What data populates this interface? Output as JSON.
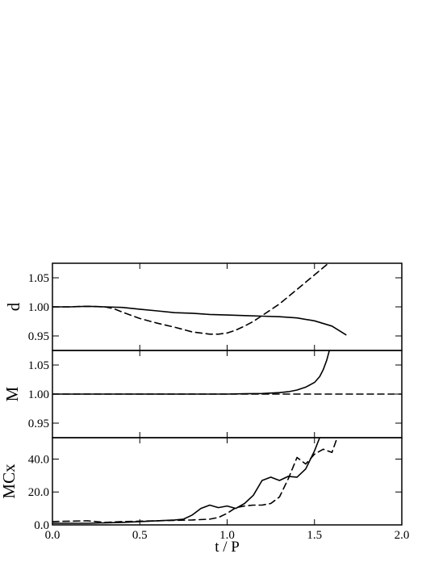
{
  "chart_data": {
    "type": "line",
    "xlabel": "t / P",
    "xlim": [
      0.0,
      2.0
    ],
    "xticks": [
      0.0,
      0.5,
      1.0,
      1.5,
      2.0
    ],
    "xtick_labels": [
      "0.0",
      "0.5",
      "1.0",
      "1.5",
      "2.0"
    ],
    "line_styles": [
      "solid",
      "dashed"
    ],
    "panels": [
      {
        "ylabel": "d",
        "ylim": [
          0.925,
          1.075
        ],
        "yticks": [
          0.95,
          1.0,
          1.05
        ],
        "ytick_labels": [
          "0.95",
          "1.00",
          "1.05"
        ],
        "series": [
          {
            "style": "solid",
            "x": [
              0.0,
              0.1,
              0.2,
              0.3,
              0.4,
              0.5,
              0.6,
              0.7,
              0.8,
              0.9,
              1.0,
              1.1,
              1.2,
              1.3,
              1.4,
              1.5,
              1.6,
              1.68
            ],
            "y": [
              1.0,
              1.0,
              1.001,
              1.0,
              0.999,
              0.996,
              0.993,
              0.99,
              0.989,
              0.987,
              0.986,
              0.985,
              0.984,
              0.983,
              0.981,
              0.976,
              0.967,
              0.952
            ]
          },
          {
            "style": "dashed",
            "x": [
              0.0,
              0.1,
              0.2,
              0.3,
              0.35,
              0.4,
              0.5,
              0.6,
              0.7,
              0.8,
              0.9,
              0.95,
              1.0,
              1.05,
              1.1,
              1.15,
              1.2,
              1.3,
              1.4,
              1.5,
              1.58
            ],
            "y": [
              1.0,
              1.0,
              1.001,
              1.0,
              0.997,
              0.991,
              0.98,
              0.972,
              0.965,
              0.957,
              0.953,
              0.953,
              0.955,
              0.96,
              0.967,
              0.975,
              0.985,
              1.005,
              1.03,
              1.055,
              1.075
            ]
          }
        ]
      },
      {
        "ylabel": "M",
        "ylim": [
          0.925,
          1.075
        ],
        "yticks": [
          0.95,
          1.0,
          1.05
        ],
        "ytick_labels": [
          "0.95",
          "1.00",
          "1.05"
        ],
        "series": [
          {
            "style": "solid",
            "x": [
              0.0,
              0.5,
              0.8,
              1.0,
              1.1,
              1.2,
              1.3,
              1.35,
              1.4,
              1.45,
              1.5,
              1.53,
              1.55,
              1.57,
              1.585
            ],
            "y": [
              1.0,
              1.0,
              1.0,
              1.0,
              1.0005,
              1.001,
              1.0025,
              1.004,
              1.007,
              1.012,
              1.02,
              1.03,
              1.042,
              1.058,
              1.075
            ]
          },
          {
            "style": "dashed",
            "x": [
              0.0,
              0.5,
              1.0,
              1.5,
              2.0
            ],
            "y": [
              1.0,
              1.0,
              1.0,
              1.0,
              1.0
            ]
          }
        ]
      },
      {
        "ylabel": "MCx",
        "ylim": [
          0.0,
          53.0
        ],
        "yticks": [
          0.0,
          20.0,
          40.0
        ],
        "ytick_labels": [
          "0.0",
          "20.0",
          "40.0"
        ],
        "series": [
          {
            "style": "solid",
            "x": [
              0.0,
              0.2,
              0.4,
              0.6,
              0.7,
              0.75,
              0.8,
              0.85,
              0.9,
              0.95,
              1.0,
              1.05,
              1.1,
              1.15,
              1.2,
              1.25,
              1.3,
              1.35,
              1.4,
              1.45,
              1.5,
              1.53
            ],
            "y": [
              1.0,
              1.0,
              1.5,
              2.5,
              3.0,
              3.5,
              6.0,
              10.0,
              12.0,
              10.5,
              11.5,
              10.0,
              13.0,
              18.0,
              27.0,
              29.0,
              27.0,
              29.5,
              29.0,
              34.0,
              45.0,
              53.0
            ]
          },
          {
            "style": "dashed",
            "x": [
              0.0,
              0.2,
              0.3,
              0.4,
              0.6,
              0.8,
              0.9,
              0.95,
              1.0,
              1.05,
              1.1,
              1.15,
              1.2,
              1.25,
              1.3,
              1.35,
              1.4,
              1.45,
              1.5,
              1.55,
              1.6,
              1.63
            ],
            "y": [
              2.0,
              2.5,
              1.5,
              2.0,
              2.5,
              3.0,
              3.5,
              4.5,
              7.0,
              10.5,
              11.5,
              12.0,
              12.0,
              13.0,
              17.0,
              28.0,
              41.0,
              37.0,
              43.0,
              46.0,
              44.0,
              53.0
            ]
          }
        ]
      }
    ]
  }
}
